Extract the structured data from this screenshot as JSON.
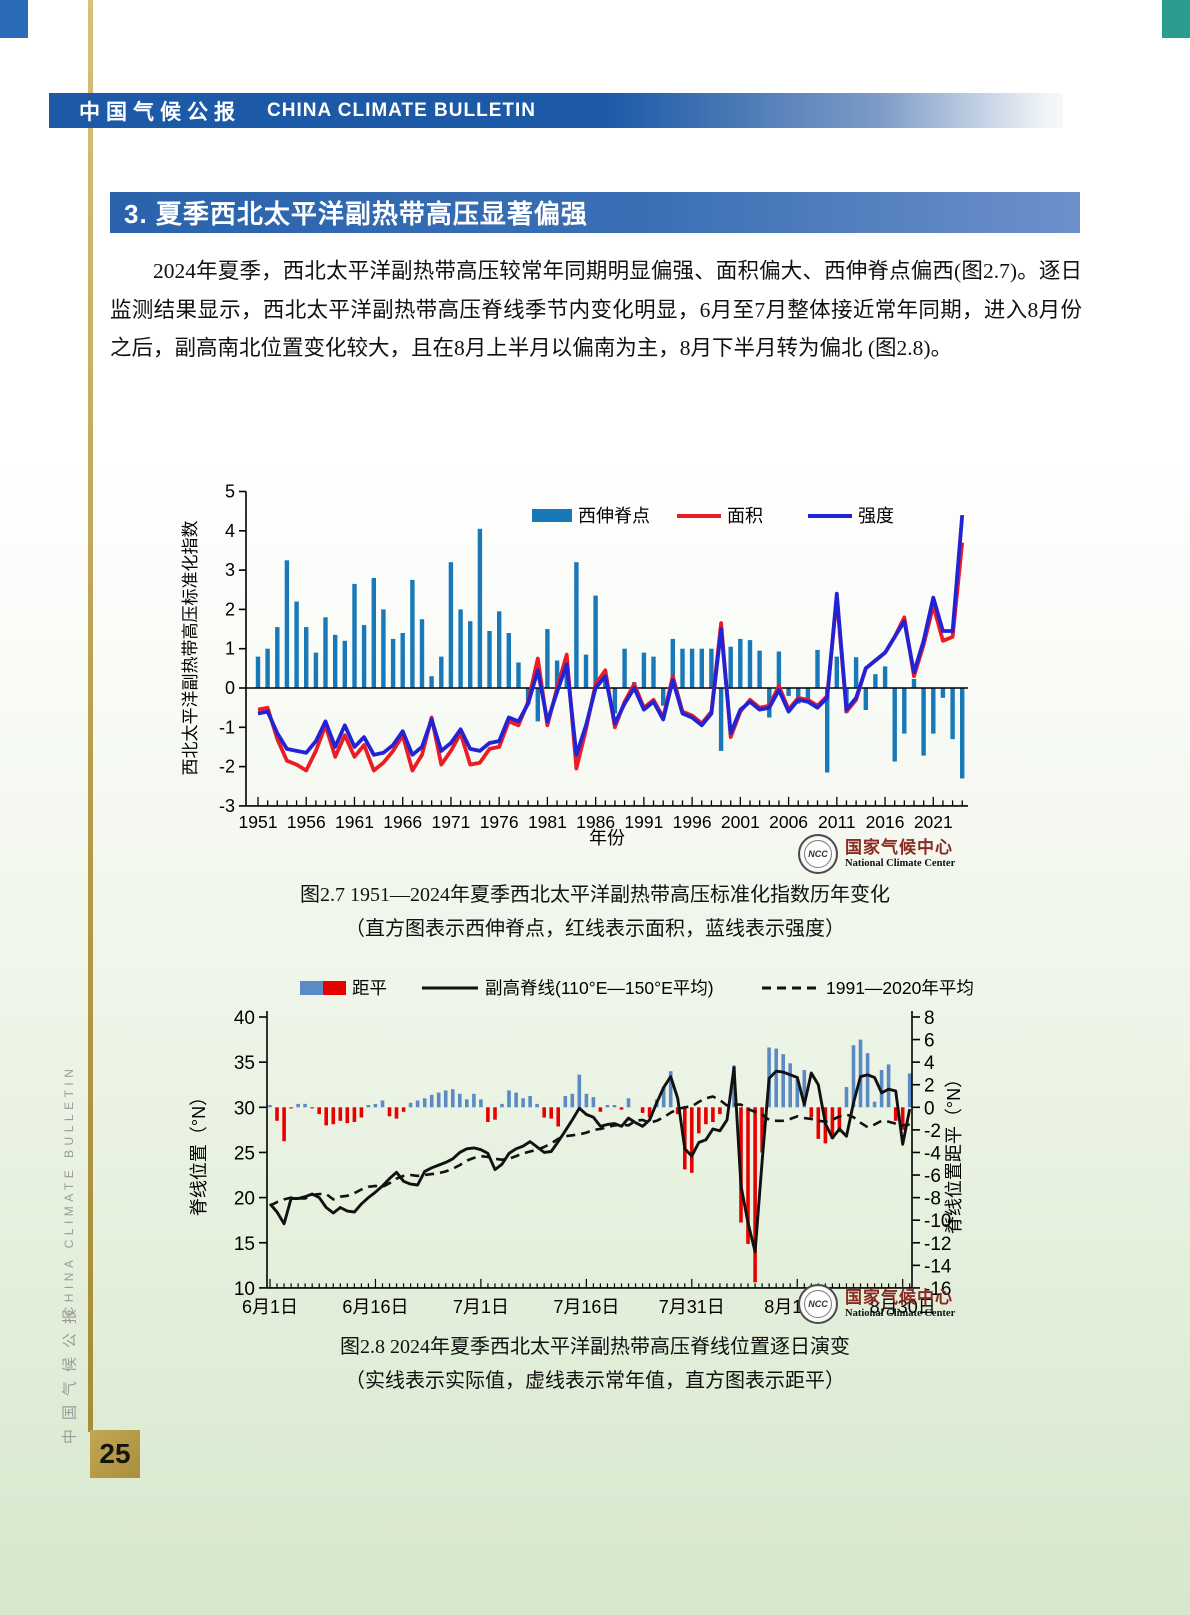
{
  "page": {
    "header": {
      "title_zh": "中国气候公报",
      "title_en": "CHINA CLIMATE BULLETIN"
    },
    "section_heading": "3. 夏季西北太平洋副热带高压显著偏强",
    "paragraph": "2024年夏季，西北太平洋副热带高压较常年同期明显偏强、面积偏大、西伸脊点偏西(图2.7)。逐日监测结果显示，西北太平洋副热带高压脊线季节内变化明显，6月至7月整体接近常年同期，进入8月份之后，副高南北位置变化较大，且在8月上半月以偏南为主，8月下半月转为偏北 (图2.8)。",
    "sidebar": {
      "text_zh": "中国气候公报",
      "text_en": "CHINA CLIMATE BULLETIN"
    },
    "page_number": "25",
    "logo": {
      "emblem_text": "NCC",
      "name_zh": "国家气候中心",
      "name_en": "National Climate Center"
    }
  },
  "figure1": {
    "caption_line1": "图2.7  1951—2024年夏季西北太平洋副热带高压标准化指数历年变化",
    "caption_line2": "（直方图表示西伸脊点，红线表示面积，蓝线表示强度）"
  },
  "figure2": {
    "caption_line1": "图2.8  2024年夏季西北太平洋副热带高压脊线位置逐日演变",
    "caption_line2": "（实线表示实际值，虚线表示常年值，直方图表示距平）"
  },
  "chart_data": [
    {
      "type": "bar+line",
      "title": "",
      "xlabel": "年份",
      "ylabel": "西北太平洋副热带高压标准化指数",
      "ylim": [
        -3,
        5
      ],
      "yticks": [
        -3,
        -2,
        -1,
        0,
        1,
        2,
        3,
        4,
        5
      ],
      "xticks": [
        1951,
        1956,
        1961,
        1966,
        1971,
        1976,
        1981,
        1986,
        1991,
        1996,
        2001,
        2006,
        2011,
        2016,
        2021
      ],
      "legend": [
        "西伸脊点",
        "面积",
        "强度"
      ],
      "legend_position": "top-center",
      "colors": {
        "bar": "#1878b8",
        "area_line": "#ec1c24",
        "intensity_line": "#2323d6"
      },
      "years_range": [
        1951,
        2024
      ],
      "series": [
        {
          "name": "西伸脊点",
          "type": "bar",
          "values": [
            0.8,
            1.0,
            1.55,
            3.25,
            2.2,
            1.55,
            0.9,
            1.8,
            1.35,
            1.2,
            2.65,
            1.6,
            2.8,
            2.0,
            1.25,
            1.4,
            2.75,
            1.75,
            0.3,
            0.8,
            3.2,
            2.0,
            1.7,
            4.05,
            1.45,
            1.95,
            1.4,
            0.65,
            -0.4,
            -0.85,
            1.5,
            0.7,
            0.45,
            3.2,
            0.85,
            2.35,
            0.4,
            -0.65,
            1.0,
            0.15,
            0.9,
            0.8,
            -0.45,
            1.25,
            1.0,
            1.0,
            1.0,
            1.0,
            -1.6,
            1.05,
            1.25,
            1.22,
            0.95,
            -0.75,
            0.93,
            -0.2,
            -0.4,
            -0.3,
            0.97,
            -2.15,
            0.8,
            -0.63,
            0.78,
            -0.56,
            0.35,
            0.55,
            -1.87,
            -1.16,
            0.23,
            -1.72,
            -1.16,
            -0.25,
            -1.3,
            -2.3
          ]
        },
        {
          "name": "面积",
          "type": "line",
          "values": [
            -0.55,
            -0.5,
            -1.3,
            -1.85,
            -1.95,
            -2.1,
            -1.6,
            -0.95,
            -1.75,
            -1.2,
            -1.75,
            -1.45,
            -2.1,
            -1.9,
            -1.6,
            -1.2,
            -2.1,
            -1.7,
            -0.75,
            -1.95,
            -1.6,
            -1.15,
            -1.95,
            -1.9,
            -1.55,
            -1.5,
            -0.85,
            -0.95,
            -0.35,
            0.75,
            -0.95,
            0.0,
            0.85,
            -2.05,
            -1.05,
            0.1,
            0.45,
            -1.0,
            -0.35,
            0.1,
            -0.5,
            -0.3,
            -0.75,
            0.3,
            -0.6,
            -0.7,
            -0.9,
            -0.6,
            1.65,
            -1.25,
            -0.6,
            -0.3,
            -0.5,
            -0.45,
            0.05,
            -0.55,
            -0.25,
            -0.3,
            -0.45,
            -0.2,
            2.3,
            -0.6,
            -0.3,
            0.5,
            0.7,
            0.9,
            1.3,
            1.8,
            0.3,
            1.1,
            2.1,
            1.2,
            1.3,
            3.7
          ]
        },
        {
          "name": "强度",
          "type": "line",
          "values": [
            -0.65,
            -0.6,
            -1.15,
            -1.55,
            -1.6,
            -1.65,
            -1.35,
            -0.85,
            -1.5,
            -0.95,
            -1.5,
            -1.25,
            -1.7,
            -1.65,
            -1.45,
            -1.1,
            -1.7,
            -1.5,
            -0.8,
            -1.6,
            -1.4,
            -1.05,
            -1.55,
            -1.6,
            -1.4,
            -1.35,
            -0.75,
            -0.85,
            -0.4,
            0.45,
            -0.85,
            -0.1,
            0.6,
            -1.7,
            -0.95,
            0.0,
            0.3,
            -0.9,
            -0.4,
            0.0,
            -0.55,
            -0.35,
            -0.8,
            0.2,
            -0.65,
            -0.75,
            -0.95,
            -0.65,
            1.5,
            -1.15,
            -0.55,
            -0.35,
            -0.55,
            -0.5,
            -0.05,
            -0.6,
            -0.3,
            -0.35,
            -0.5,
            -0.25,
            2.4,
            -0.55,
            -0.25,
            0.5,
            0.7,
            0.9,
            1.3,
            1.7,
            0.4,
            1.2,
            2.3,
            1.45,
            1.45,
            4.4
          ]
        }
      ]
    },
    {
      "type": "bar+line",
      "title": "",
      "ylabel_left": "脊线位置（°N）",
      "ylabel_right": "脊线位置距平（°N）",
      "ylim_left": [
        10,
        40
      ],
      "ylim_right": [
        -16,
        8
      ],
      "yticks_left": [
        10,
        15,
        20,
        25,
        30,
        35,
        40
      ],
      "yticks_right": [
        8,
        6,
        4,
        2,
        0,
        -2,
        -4,
        -6,
        -8,
        -10,
        -12,
        -14,
        -16
      ],
      "xtick_labels": [
        "6月1日",
        "6月16日",
        "7月1日",
        "7月16日",
        "7月31日",
        "8月15日",
        "8月30日"
      ],
      "xtick_day_index": [
        0,
        15,
        30,
        45,
        60,
        75,
        90
      ],
      "legend": [
        "距平",
        "副高脊线(110°E—150°E平均)",
        "1991—2020年平均"
      ],
      "colors": {
        "bar_positive": "#5b8ac5",
        "bar_negative": "#e60000",
        "solid_line": "#111111",
        "dashed_line": "#111111"
      },
      "dates": [
        "6/1",
        "6/2",
        "6/3",
        "6/4",
        "6/5",
        "6/6",
        "6/7",
        "6/8",
        "6/9",
        "6/10",
        "6/11",
        "6/12",
        "6/13",
        "6/14",
        "6/15",
        "6/16",
        "6/17",
        "6/18",
        "6/19",
        "6/20",
        "6/21",
        "6/22",
        "6/23",
        "6/24",
        "6/25",
        "6/26",
        "6/27",
        "6/28",
        "6/29",
        "6/30",
        "7/1",
        "7/2",
        "7/3",
        "7/4",
        "7/5",
        "7/6",
        "7/7",
        "7/8",
        "7/9",
        "7/10",
        "7/11",
        "7/12",
        "7/13",
        "7/14",
        "7/15",
        "7/16",
        "7/17",
        "7/18",
        "7/19",
        "7/20",
        "7/21",
        "7/22",
        "7/23",
        "7/24",
        "7/25",
        "7/26",
        "7/27",
        "7/28",
        "7/29",
        "7/30",
        "7/31",
        "8/1",
        "8/2",
        "8/3",
        "8/4",
        "8/5",
        "8/6",
        "8/7",
        "8/8",
        "8/9",
        "8/10",
        "8/11",
        "8/12",
        "8/13",
        "8/14",
        "8/15",
        "8/16",
        "8/17",
        "8/18",
        "8/19",
        "8/20",
        "8/21",
        "8/22",
        "8/23",
        "8/24",
        "8/25",
        "8/26",
        "8/27",
        "8/28",
        "8/29",
        "8/30",
        "8/31"
      ],
      "series": [
        {
          "name": "距平",
          "type": "bar",
          "axis": "right",
          "values": [
            0.2,
            -1.2,
            -3.0,
            -0.1,
            0.3,
            0.3,
            -0.1,
            -0.6,
            -1.6,
            -1.5,
            -1.2,
            -1.4,
            -1.3,
            -0.9,
            0.2,
            0.3,
            0.6,
            -0.8,
            -1.0,
            -0.4,
            0.4,
            0.6,
            0.8,
            1.1,
            1.3,
            1.5,
            1.6,
            1.2,
            0.7,
            1.2,
            0.7,
            -1.3,
            -1.1,
            0.3,
            1.5,
            1.3,
            0.8,
            1.0,
            0.3,
            -0.9,
            -1.0,
            -1.7,
            1.0,
            1.2,
            2.9,
            1.2,
            0.9,
            -0.4,
            0.2,
            0.2,
            -0.2,
            0.8,
            0.0,
            -0.5,
            -0.9,
            0.7,
            1.8,
            3.2,
            -0.6,
            -5.5,
            -5.8,
            -2.3,
            -1.5,
            -1.3,
            -0.6,
            0.0,
            3.7,
            -10.2,
            -12.1,
            -15.5,
            -4.0,
            5.3,
            5.2,
            4.7,
            3.9,
            2.5,
            3.3,
            -0.9,
            -2.8,
            -3.2,
            -2.8,
            -2.2,
            1.8,
            5.5,
            6.0,
            4.8,
            0.5,
            3.3,
            3.8,
            -1.2,
            -2.0,
            3.0
          ]
        },
        {
          "name": "副高脊线(110°E—150°E平均)",
          "type": "line",
          "style": "solid",
          "axis": "left",
          "values": [
            19.3,
            18.4,
            17.1,
            19.9,
            19.9,
            20.1,
            20.4,
            20.0,
            18.9,
            18.3,
            18.9,
            18.5,
            18.4,
            19.3,
            20.0,
            20.6,
            21.3,
            22.1,
            22.8,
            21.8,
            21.5,
            21.4,
            22.9,
            23.3,
            23.6,
            23.9,
            24.3,
            25.0,
            25.4,
            25.5,
            25.3,
            24.9,
            23.1,
            23.7,
            24.9,
            25.4,
            25.7,
            26.2,
            25.6,
            25.0,
            25.1,
            26.2,
            27.4,
            28.6,
            29.9,
            29.2,
            28.9,
            27.9,
            28.1,
            28.2,
            27.9,
            28.8,
            28.3,
            27.9,
            28.6,
            30.5,
            32.2,
            33.4,
            31.0,
            25.4,
            24.6,
            26.1,
            26.4,
            27.6,
            27.4,
            28.6,
            34.4,
            21.3,
            17.2,
            14.0,
            24.0,
            33.2,
            34.0,
            33.9,
            33.6,
            33.3,
            30.3,
            33.8,
            32.5,
            28.2,
            26.6,
            27.6,
            26.8,
            30.5,
            33.4,
            33.6,
            33.3,
            31.6,
            32.0,
            31.8,
            25.9,
            29.8
          ]
        },
        {
          "name": "1991—2020年平均",
          "type": "line",
          "style": "dashed",
          "axis": "left",
          "values": [
            19.1,
            19.5,
            19.8,
            20.0,
            19.9,
            19.9,
            20.3,
            20.4,
            20.4,
            19.8,
            20.1,
            20.2,
            20.5,
            20.9,
            21.2,
            21.3,
            21.2,
            21.6,
            22.1,
            22.4,
            22.5,
            22.4,
            22.5,
            22.6,
            22.7,
            22.9,
            23.2,
            23.6,
            24.1,
            24.4,
            24.6,
            24.5,
            24.3,
            24.2,
            24.3,
            24.6,
            24.9,
            25.1,
            25.3,
            25.6,
            26.0,
            26.5,
            26.8,
            26.9,
            27.0,
            27.2,
            27.5,
            27.6,
            27.8,
            28.0,
            28.1,
            28.0,
            28.5,
            28.6,
            28.3,
            28.5,
            28.9,
            29.4,
            29.8,
            30.0,
            30.1,
            30.6,
            31.0,
            31.2,
            30.8,
            30.2,
            30.3,
            30.3,
            29.8,
            29.5,
            29.2,
            28.6,
            28.5,
            28.5,
            28.7,
            29.0,
            28.8,
            28.7,
            28.5,
            28.4,
            28.6,
            29.0,
            29.2,
            28.9,
            28.3,
            27.8,
            28.1,
            28.5,
            28.4,
            28.2,
            28.0,
            28.1
          ]
        }
      ]
    }
  ]
}
